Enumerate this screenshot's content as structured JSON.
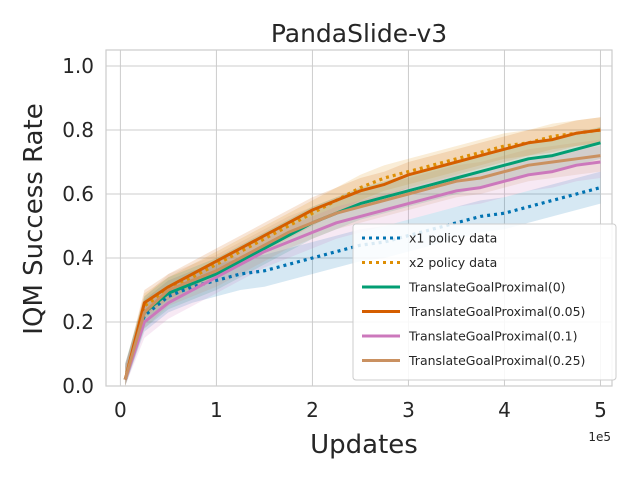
{
  "chart_data": {
    "type": "line",
    "title": "PandaSlide-v3",
    "xlabel": "Updates",
    "ylabel": "IQM Success Rate",
    "x_offset_label": "1e5",
    "xlim": [
      -0.15,
      5.12
    ],
    "ylim": [
      0.0,
      1.05
    ],
    "x_ticks": [
      0,
      1,
      2,
      3,
      4,
      5
    ],
    "y_ticks": [
      0.0,
      0.2,
      0.4,
      0.6,
      0.8,
      1.0
    ],
    "y_tick_labels": [
      "0.0",
      "0.2",
      "0.4",
      "0.6",
      "0.8",
      "1.0"
    ],
    "grid": true,
    "legend_position": "lower-right",
    "x": [
      0.05,
      0.25,
      0.5,
      0.75,
      1.0,
      1.25,
      1.5,
      1.75,
      2.0,
      2.25,
      2.5,
      2.75,
      3.0,
      3.25,
      3.5,
      3.75,
      4.0,
      4.25,
      4.5,
      4.75,
      5.0
    ],
    "series": [
      {
        "name": "x1 policy data",
        "color": "#0173b2",
        "dash": "dotted",
        "values": [
          0.02,
          0.22,
          0.28,
          0.31,
          0.33,
          0.35,
          0.36,
          0.38,
          0.4,
          0.42,
          0.44,
          0.45,
          0.47,
          0.49,
          0.51,
          0.53,
          0.54,
          0.56,
          0.58,
          0.6,
          0.62
        ],
        "band": 0.05
      },
      {
        "name": "x2 policy data",
        "color": "#de8f05",
        "dash": "dotted",
        "values": [
          0.02,
          0.25,
          0.3,
          0.34,
          0.38,
          0.42,
          0.46,
          0.5,
          0.54,
          0.58,
          0.62,
          0.65,
          0.67,
          0.69,
          0.71,
          0.73,
          0.75,
          0.76,
          0.78,
          0.79,
          0.8
        ],
        "band": 0.04
      },
      {
        "name": "TranslateGoalProximal(0)",
        "color": "#029e73",
        "dash": "solid",
        "values": [
          0.02,
          0.23,
          0.29,
          0.32,
          0.35,
          0.39,
          0.43,
          0.47,
          0.51,
          0.54,
          0.57,
          0.59,
          0.61,
          0.63,
          0.65,
          0.67,
          0.69,
          0.71,
          0.72,
          0.74,
          0.76
        ],
        "band": 0.05
      },
      {
        "name": "TranslateGoalProximal(0.05)",
        "color": "#d55e00",
        "dash": "solid",
        "values": [
          0.02,
          0.26,
          0.31,
          0.35,
          0.39,
          0.43,
          0.47,
          0.51,
          0.55,
          0.58,
          0.61,
          0.63,
          0.66,
          0.68,
          0.7,
          0.72,
          0.74,
          0.76,
          0.77,
          0.79,
          0.8
        ],
        "band": 0.04
      },
      {
        "name": "TranslateGoalProximal(0.1)",
        "color": "#cc78bc",
        "dash": "solid",
        "values": [
          0.02,
          0.2,
          0.26,
          0.3,
          0.34,
          0.38,
          0.42,
          0.45,
          0.48,
          0.51,
          0.53,
          0.55,
          0.57,
          0.59,
          0.61,
          0.62,
          0.64,
          0.66,
          0.67,
          0.69,
          0.7
        ],
        "band": 0.05
      },
      {
        "name": "TranslateGoalProximal(0.25)",
        "color": "#ca9161",
        "dash": "solid",
        "values": [
          0.02,
          0.23,
          0.3,
          0.33,
          0.36,
          0.4,
          0.44,
          0.48,
          0.51,
          0.54,
          0.56,
          0.58,
          0.6,
          0.62,
          0.64,
          0.65,
          0.67,
          0.69,
          0.7,
          0.71,
          0.72
        ],
        "band": 0.05
      }
    ]
  }
}
